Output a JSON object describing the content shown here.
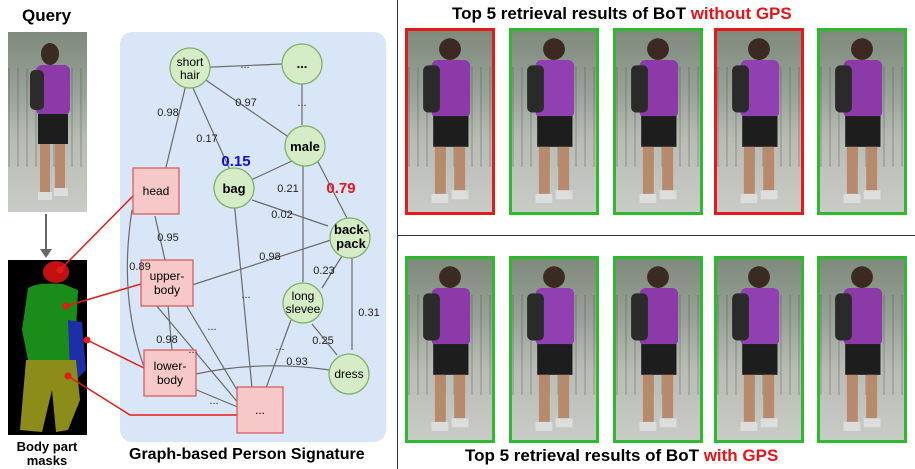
{
  "query": {
    "title": "Query"
  },
  "masks": {
    "label_line1": "Body part",
    "label_line2": "masks"
  },
  "graph": {
    "caption": "Graph-based Person Signature",
    "nodes": {
      "short_hair_1": "short",
      "short_hair_2": "hair",
      "ellipsis_top": "...",
      "male": "male",
      "bag": "bag",
      "backpack_1": "back-",
      "backpack_2": "pack",
      "long_sleeve_1": "long",
      "long_sleeve_2": "slevee",
      "dress": "dress",
      "head": "head",
      "upper_body_1": "upper-",
      "upper_body_2": "body",
      "lower_body_1": "lower-",
      "lower_body_2": "body",
      "ellipsis_bottom": "..."
    },
    "edges": {
      "e_098_a": "0.98",
      "e_097": "0.97",
      "e_017": "0.17",
      "e_015": "0.15",
      "e_021": "0.21",
      "e_079": "0.79",
      "e_002": "0.02",
      "e_095": "0.95",
      "e_089": "0.89",
      "e_098_b": "0.98",
      "e_023": "0.23",
      "e_031": "0.31",
      "e_098_c": "0.98",
      "e_025": "0.25",
      "e_093": "0.93",
      "dots_top_mid": "...",
      "dots_top_right": "...",
      "dots_mid_a": "...",
      "dots_mid_b": "...",
      "dots_mid_c": "...",
      "dots_low_a": "...",
      "dots_low_b": "..."
    },
    "colors": {
      "panel_bg": "#d9e6f7",
      "attr_node_fill": "#d6ecc7",
      "attr_node_stroke": "#7fb069",
      "part_node_fill": "#f6c8c8",
      "part_node_stroke": "#d96060",
      "highlight_blue": "#1010d0",
      "highlight_red": "#e8141a"
    }
  },
  "without_gps": {
    "title_prefix": "Top 5 retrieval results of BoT ",
    "title_highlight": "without GPS",
    "results": [
      "incorrect",
      "correct",
      "correct",
      "incorrect",
      "correct"
    ]
  },
  "with_gps": {
    "title_prefix": "Top 5 retrieval results of BoT ",
    "title_highlight": "with GPS",
    "results": [
      "correct",
      "correct",
      "correct",
      "correct",
      "correct"
    ]
  }
}
